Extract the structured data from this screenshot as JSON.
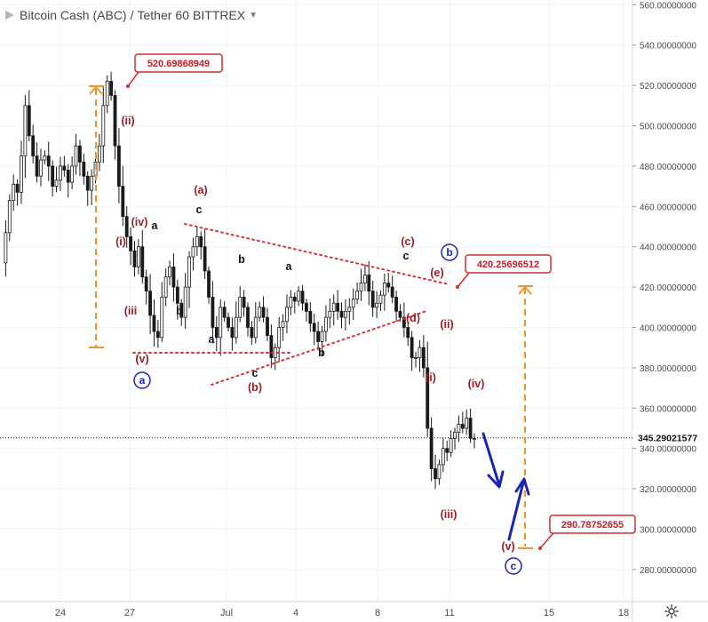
{
  "header": {
    "pair": "Bitcoin Cash (ABC)",
    "slash": "/",
    "quote": "Tether",
    "interval": "60",
    "exchange": "BITTREX",
    "caret_icon": "chevron-down-icon"
  },
  "colors": {
    "wave_red": "#9e1d23",
    "wave_blue": "#1a23b8",
    "orange": "#f0932b",
    "callout_border": "#d42e2e",
    "callout_text": "#c0202a",
    "triangle_dots": "#d9343f",
    "candle": "#1a1a1a",
    "axis_text": "#4a4a4a",
    "grid": "#f2f3f5"
  },
  "chart_data": {
    "type": "candlestick",
    "title": "Bitcoin Cash (ABC) / Tether · 60 · BITTREX",
    "ylim": [
      270,
      565
    ],
    "y_ticks": [
      "280.00000000",
      "300.00000000",
      "320.00000000",
      "340.00000000",
      "360.00000000",
      "380.00000000",
      "400.00000000",
      "420.00000000",
      "440.00000000",
      "460.00000000",
      "480.00000000",
      "500.00000000",
      "520.00000000",
      "540.00000000",
      "560.00000000"
    ],
    "x_ticks": [
      "24",
      "27",
      "Jul",
      "4",
      "8",
      "11",
      "15",
      "18"
    ],
    "last_price": "345.29021577",
    "callouts": [
      {
        "text": "520.69868949",
        "price": 520.7
      },
      {
        "text": "420.25696512",
        "price": 420.26
      },
      {
        "text": "290.78752655",
        "price": 290.79
      }
    ],
    "path_close": [
      432,
      447,
      463,
      471,
      467,
      485,
      510,
      495,
      485,
      475,
      483,
      485,
      480,
      470,
      473,
      480,
      478,
      472,
      480,
      490,
      482,
      475,
      468,
      475,
      482,
      490,
      510,
      522,
      515,
      490,
      470,
      455,
      445,
      438,
      430,
      440,
      425,
      418,
      406,
      398,
      395,
      415,
      425,
      430,
      420,
      412,
      405,
      420,
      435,
      440,
      445,
      440,
      428,
      415,
      400,
      395,
      410,
      405,
      400,
      395,
      405,
      415,
      410,
      400,
      395,
      405,
      410,
      405,
      396,
      385,
      390,
      400,
      403,
      410,
      415,
      413,
      418,
      412,
      408,
      402,
      398,
      393,
      398,
      405,
      408,
      412,
      408,
      405,
      408,
      410,
      414,
      418,
      422,
      426,
      418,
      410,
      412,
      416,
      422,
      420,
      415,
      408,
      405,
      400,
      395,
      385,
      385,
      390,
      380,
      350,
      330,
      325,
      332,
      340,
      338,
      345,
      348,
      352,
      350,
      355,
      345,
      345
    ],
    "wave_labels": [
      {
        "text": "(ii)",
        "color": "red"
      },
      {
        "text": "(iv)",
        "color": "red"
      },
      {
        "text": "a",
        "color": "black"
      },
      {
        "text": "(i)",
        "color": "red"
      },
      {
        "text": "(iii",
        "color": "red"
      },
      {
        "text": "(v)",
        "color": "red"
      },
      {
        "text": "a",
        "color": "blue_circle"
      },
      {
        "text": "b",
        "color": "black"
      },
      {
        "text": "a",
        "color": "black"
      },
      {
        "text": "(a)",
        "color": "red"
      },
      {
        "text": "c",
        "color": "black"
      },
      {
        "text": "b",
        "color": "black"
      },
      {
        "text": "a",
        "color": "black"
      },
      {
        "text": "c",
        "color": "black"
      },
      {
        "text": "(b)",
        "color": "red"
      },
      {
        "text": "b",
        "color": "black"
      },
      {
        "text": "(c)",
        "color": "red"
      },
      {
        "text": "c",
        "color": "black"
      },
      {
        "text": "b",
        "color": "blue_circle"
      },
      {
        "text": "(e)",
        "color": "red"
      },
      {
        "text": "(d)",
        "color": "red"
      },
      {
        "text": "(ii)",
        "color": "red"
      },
      {
        "text": "(i)",
        "color": "red"
      },
      {
        "text": "(iv)",
        "color": "red"
      },
      {
        "text": "(iii)",
        "color": "red"
      },
      {
        "text": "(v)",
        "color": "red"
      },
      {
        "text": "c",
        "color": "blue_circle"
      }
    ],
    "grid": true
  },
  "icons": {
    "settings": "gear-icon"
  }
}
